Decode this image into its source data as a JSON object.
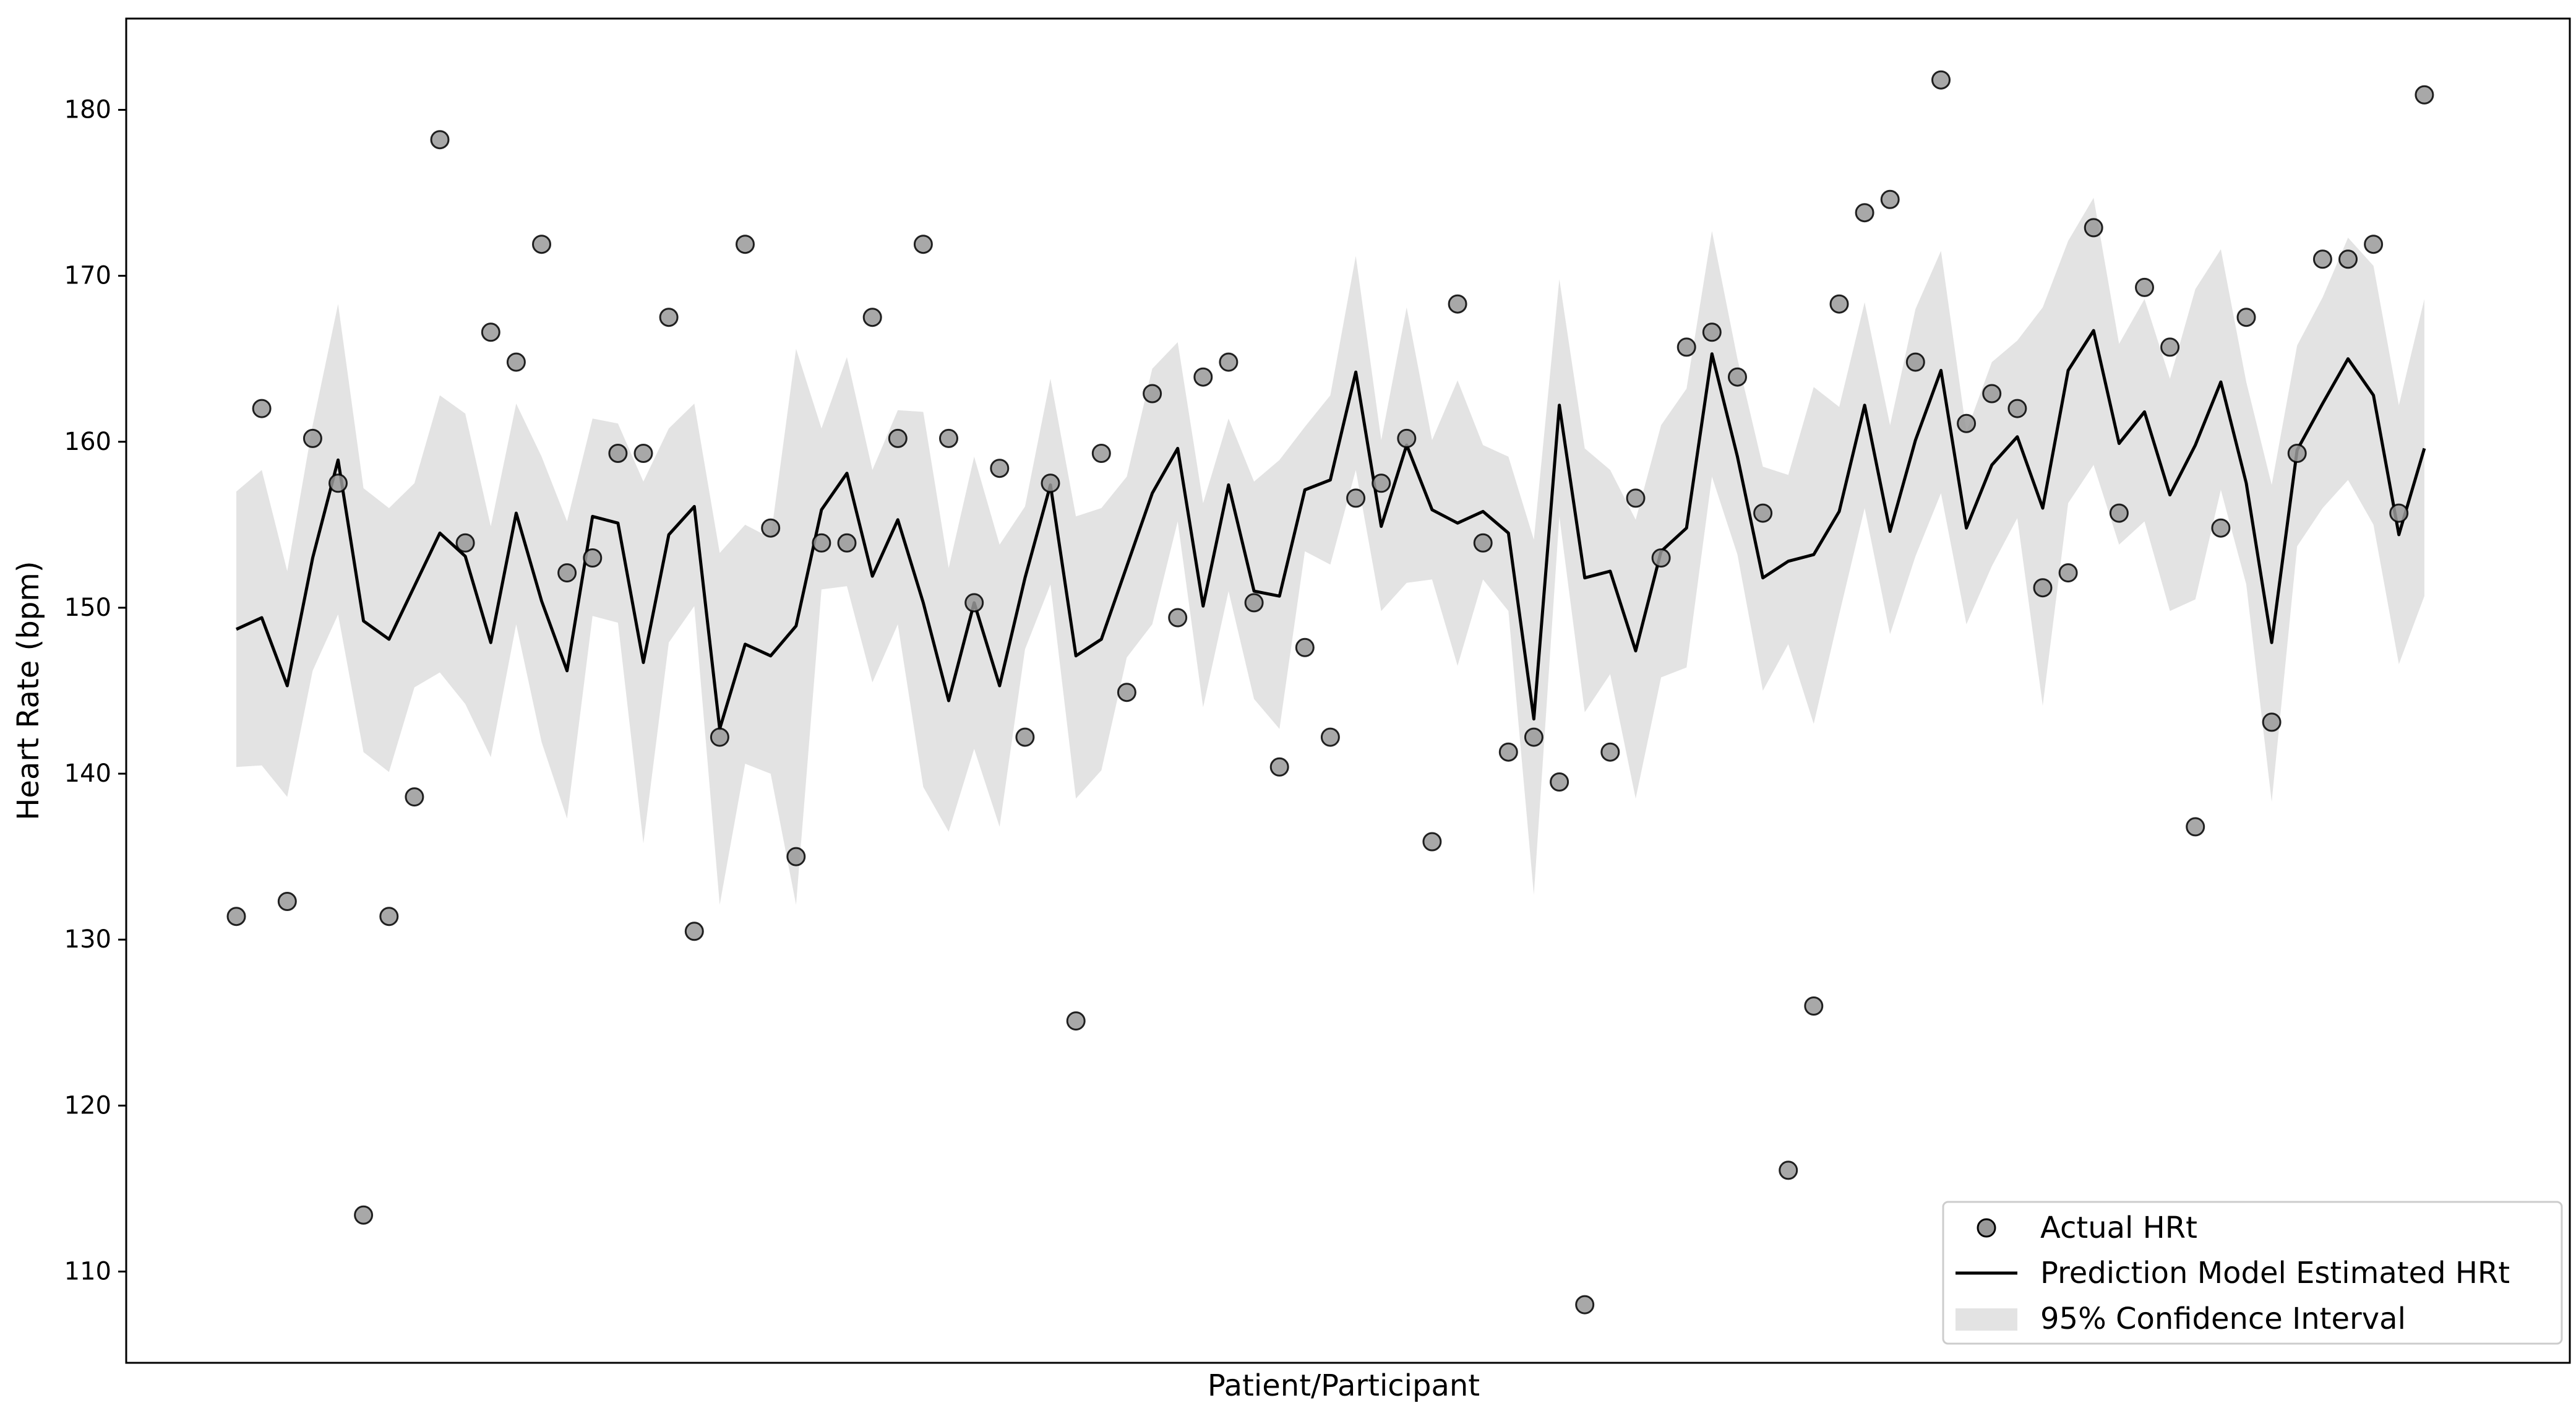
{
  "chart_data": {
    "type": "line",
    "title": "",
    "xlabel": "Patient/Participant",
    "ylabel": "Heart Rate (bpm)",
    "ylim": [
      104.5,
      185.5
    ],
    "y_ticks": [
      110,
      120,
      130,
      140,
      150,
      160,
      170,
      180
    ],
    "x_ticks_shown": false,
    "grid": false,
    "legend_position": "bottom-right",
    "colors": {
      "actual_points": "#999999",
      "actual_points_edge": "#000000",
      "prediction_line": "#000000",
      "confidence_band": "#e3e3e3"
    },
    "x": [
      1,
      2,
      3,
      4,
      5,
      6,
      7,
      8,
      9,
      10,
      11,
      12,
      13,
      14,
      15,
      16,
      17,
      18,
      19,
      20,
      21,
      22,
      23,
      24,
      25,
      26,
      27,
      28,
      29,
      30,
      31,
      32,
      33,
      34,
      35,
      36,
      37,
      38,
      39,
      40,
      41,
      42,
      43,
      44,
      45,
      46,
      47,
      48,
      49,
      50,
      51,
      52,
      53,
      54,
      55,
      56,
      57,
      58,
      59,
      60,
      61,
      62,
      63,
      64,
      65,
      66,
      67,
      68,
      69,
      70,
      71,
      72,
      73,
      74,
      75,
      76,
      77,
      78,
      79,
      80,
      81,
      82,
      83,
      84,
      85,
      86,
      87,
      88
    ],
    "series": [
      {
        "name": "Actual HRt",
        "kind": "scatter",
        "values": [
          131.4,
          162.0,
          132.3,
          160.2,
          157.5,
          113.4,
          131.4,
          138.6,
          178.2,
          153.9,
          166.6,
          164.8,
          171.9,
          152.1,
          153.0,
          159.3,
          159.3,
          167.5,
          130.5,
          142.2,
          171.9,
          154.8,
          135.0,
          153.9,
          153.9,
          167.5,
          160.2,
          171.9,
          160.2,
          150.3,
          158.4,
          142.2,
          157.5,
          125.1,
          159.3,
          144.9,
          162.9,
          149.4,
          163.9,
          164.8,
          150.3,
          140.4,
          147.6,
          142.2,
          156.6,
          157.5,
          160.2,
          135.9,
          168.3,
          153.9,
          141.3,
          142.2,
          139.5,
          108.0,
          141.3,
          156.6,
          153.0,
          165.7,
          166.6,
          163.9,
          155.7,
          116.1,
          126.0,
          168.3,
          173.8,
          174.6,
          164.8,
          181.8,
          161.1,
          162.9,
          162.0,
          151.2,
          152.1,
          172.9,
          155.7,
          169.3,
          165.7,
          136.8,
          154.8,
          167.5,
          143.1,
          159.3,
          171.0,
          171.0,
          171.9,
          155.7,
          180.9,
          null
        ]
      },
      {
        "name": "Prediction Model Estimated HRt",
        "kind": "line",
        "values": [
          148.7,
          149.4,
          145.3,
          153.0,
          158.9,
          149.2,
          148.1,
          151.3,
          154.5,
          153.1,
          147.9,
          155.7,
          150.4,
          146.2,
          155.5,
          155.1,
          146.7,
          154.4,
          156.1,
          142.7,
          147.8,
          147.1,
          148.9,
          155.9,
          158.1,
          151.9,
          155.3,
          150.3,
          144.4,
          150.3,
          145.3,
          151.8,
          157.4,
          147.1,
          148.1,
          152.5,
          156.9,
          159.6,
          150.1,
          157.4,
          151.0,
          150.7,
          157.1,
          157.7,
          164.2,
          154.9,
          159.8,
          155.9,
          155.1,
          155.8,
          154.5,
          143.3,
          162.2,
          151.8,
          152.2,
          147.4,
          153.4,
          154.8,
          165.3,
          159.1,
          151.8,
          152.8,
          153.2,
          155.8,
          162.2,
          154.6,
          160.1,
          164.3,
          154.8,
          158.6,
          160.3,
          156.0,
          164.3,
          166.7,
          159.9,
          161.8,
          156.8,
          159.8,
          163.6,
          157.5,
          147.9,
          159.5,
          162.3,
          165.0,
          162.8,
          154.4,
          159.6,
          null
        ]
      }
    ],
    "confidence_interval": {
      "name": "95% Confidence Interval",
      "lower": [
        140.4,
        140.5,
        138.6,
        146.2,
        149.6,
        141.3,
        140.1,
        145.2,
        146.1,
        144.2,
        141.0,
        149.0,
        141.9,
        137.3,
        149.5,
        149.1,
        135.8,
        147.9,
        150.1,
        132.1,
        140.6,
        140.0,
        132.1,
        151.1,
        151.3,
        145.5,
        149.0,
        139.2,
        136.5,
        141.5,
        136.8,
        147.5,
        151.4,
        138.5,
        140.2,
        147.0,
        149.0,
        155.2,
        144.0,
        151.0,
        144.5,
        142.7,
        153.4,
        152.6,
        158.3,
        149.8,
        151.5,
        151.7,
        146.5,
        151.7,
        149.8,
        132.7,
        155.5,
        143.7,
        146.0,
        138.5,
        145.8,
        146.4,
        157.9,
        153.2,
        145.0,
        147.8,
        143.0,
        149.6,
        156.0,
        148.4,
        153.1,
        156.9,
        149.0,
        152.5,
        155.4,
        144.1,
        156.3,
        158.6,
        153.8,
        155.2,
        149.8,
        150.5,
        157.1,
        151.4,
        138.3,
        153.7,
        156.0,
        157.7,
        155.0,
        146.6,
        150.7,
        null
      ],
      "upper": [
        157.0,
        158.3,
        152.2,
        161.0,
        168.3,
        157.2,
        156.0,
        157.5,
        162.8,
        161.7,
        154.9,
        162.3,
        159.1,
        155.2,
        161.4,
        161.1,
        157.6,
        160.8,
        162.3,
        153.3,
        155.0,
        154.2,
        165.6,
        160.8,
        165.1,
        158.3,
        161.9,
        161.8,
        152.4,
        159.1,
        153.8,
        156.1,
        163.8,
        155.5,
        156.0,
        157.9,
        164.4,
        166.0,
        156.3,
        161.4,
        157.6,
        158.9,
        160.9,
        162.8,
        171.2,
        160.1,
        168.1,
        160.1,
        163.7,
        159.8,
        159.1,
        154.1,
        169.8,
        159.6,
        158.3,
        155.3,
        161.0,
        163.2,
        172.7,
        165.0,
        158.5,
        158.0,
        163.3,
        162.1,
        168.4,
        161.0,
        168.0,
        171.5,
        160.6,
        164.8,
        166.1,
        168.1,
        172.1,
        174.7,
        165.9,
        168.6,
        163.8,
        169.2,
        171.6,
        163.6,
        157.4,
        165.8,
        168.7,
        172.3,
        170.6,
        162.2,
        168.6,
        null
      ]
    },
    "legend": [
      {
        "label": "Actual HRt",
        "marker": "circle"
      },
      {
        "label": "Prediction Model Estimated HRt",
        "marker": "line"
      },
      {
        "label": "95% Confidence Interval",
        "marker": "patch"
      }
    ]
  }
}
